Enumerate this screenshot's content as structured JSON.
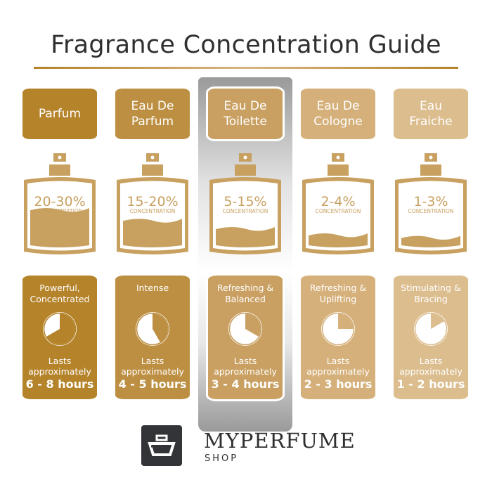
{
  "title": "Fragrance Concentration Guide",
  "concentration_word": "CONCENTRATION",
  "lasts_text": "Lasts approximately",
  "highlighted_index": 2,
  "columns": [
    {
      "name": "Parfum",
      "concentration": "20-30%",
      "description": "Powerful, Concentrated",
      "duration": "6 - 8 hours",
      "max_hours": 8,
      "fill_level": 0.5,
      "color": "#b5832a"
    },
    {
      "name": "Eau De Parfum",
      "concentration": "15-20%",
      "description": "Intense",
      "duration": "4 - 5 hours",
      "max_hours": 5,
      "fill_level": 0.33,
      "color": "#bd8f42"
    },
    {
      "name": "Eau De Toilette",
      "concentration": "5-15%",
      "description": "Refreshing & Balanced",
      "duration": "3 - 4 hours",
      "max_hours": 4,
      "fill_level": 0.2,
      "color": "#c9a062"
    },
    {
      "name": "Eau De Cologne",
      "concentration": "2-4%",
      "description": "Refreshing & Uplifting",
      "duration": "2 - 3 hours",
      "max_hours": 3,
      "fill_level": 0.1,
      "color": "#d5b07a"
    },
    {
      "name": "Eau Fraiche",
      "concentration": "1-3%",
      "description": "Stimulating & Bracing",
      "duration": "1 - 2 hours",
      "max_hours": 2,
      "fill_level": 0.06,
      "color": "#dcbd8e"
    }
  ],
  "bottle_color": "#c8a060",
  "brand": {
    "name": "MYPERFUME",
    "sub": "SHOP",
    "color": "#333437"
  }
}
